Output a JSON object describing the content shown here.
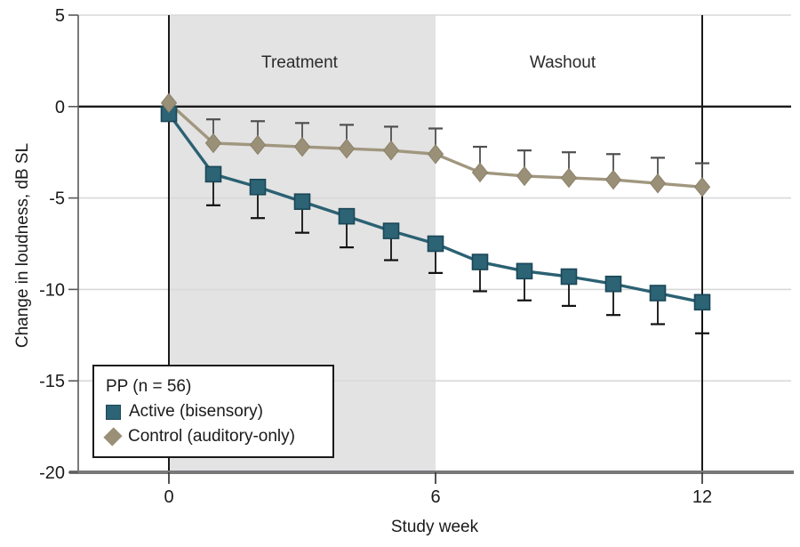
{
  "chart_data": {
    "type": "line",
    "title": "",
    "xlabel": "Study week",
    "ylabel": "Change in loudness, dB SL",
    "x": [
      0,
      1,
      2,
      3,
      4,
      5,
      6,
      7,
      8,
      9,
      10,
      11,
      12
    ],
    "x_ticks": [
      "0",
      "6",
      "12"
    ],
    "x_tick_values": [
      0,
      6,
      12
    ],
    "y_ticks": [
      "5",
      "0",
      "-5",
      "-10",
      "-15",
      "-20"
    ],
    "y_tick_values": [
      5,
      0,
      -5,
      -10,
      -15,
      -20
    ],
    "ylim": [
      -20,
      5
    ],
    "grid": "horizontal-light",
    "reference_week_lines": [
      0,
      12
    ],
    "regions": [
      {
        "label": "Treatment",
        "week_start": 0,
        "week_end": 6,
        "shaded": true
      },
      {
        "label": "Washout",
        "week_start": 6,
        "week_end": 12,
        "shaded": false
      }
    ],
    "legend": {
      "title": "PP (n = 56)",
      "position": "bottom-left"
    },
    "series": [
      {
        "name": "Active (bisensory)",
        "marker": "square",
        "line_color": "#2b6173",
        "marker_fill": "#2c6375",
        "marker_border": "#1b4757",
        "error_direction": "down",
        "error_color": "#111111",
        "values": [
          -0.4,
          -3.7,
          -4.4,
          -5.2,
          -6.0,
          -6.8,
          -7.5,
          -8.5,
          -9.0,
          -9.3,
          -9.7,
          -10.2,
          -10.7
        ],
        "error": [
          0,
          1.7,
          1.7,
          1.7,
          1.7,
          1.6,
          1.6,
          1.6,
          1.6,
          1.6,
          1.7,
          1.7,
          1.7
        ]
      },
      {
        "name": "Control (auditory-only)",
        "marker": "diamond",
        "line_color": "#a1977f",
        "marker_fill": "#9a9078",
        "marker_border": "#8a8169",
        "error_direction": "up",
        "error_color": "#4f4f4f",
        "values": [
          0.2,
          -2.0,
          -2.1,
          -2.2,
          -2.3,
          -2.4,
          -2.6,
          -3.6,
          -3.8,
          -3.9,
          -4.0,
          -4.2,
          -4.4
        ],
        "error": [
          0,
          1.3,
          1.3,
          1.3,
          1.3,
          1.3,
          1.4,
          1.4,
          1.4,
          1.4,
          1.4,
          1.4,
          1.3
        ]
      }
    ],
    "colors": {
      "shading": "#e3e3e3",
      "gridline": "#d9d9d9",
      "zero_line": "#1a1a1a",
      "reference_line": "#1a1a1a",
      "axis": "#58595b",
      "bottom_axis": "#77787a",
      "text": "#1a1a1a"
    }
  }
}
